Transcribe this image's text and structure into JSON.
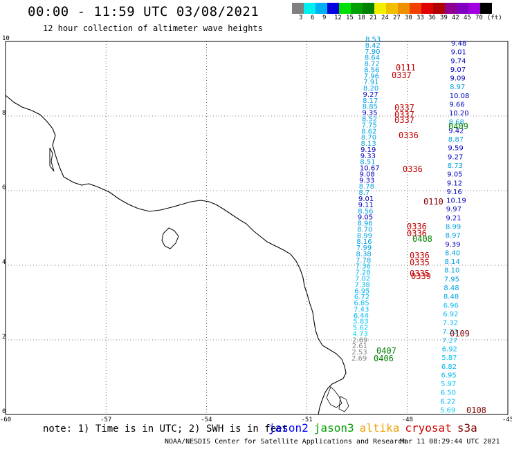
{
  "header": {
    "title": "00:00 - 11:59 UTC 03/08/2021",
    "subtitle": "12 hour collection of altimeter wave heights"
  },
  "colorbar": {
    "colors": [
      "#808080",
      "#00f0f0",
      "#00b0f0",
      "#0000e0",
      "#00e000",
      "#00a000",
      "#008000",
      "#f0f000",
      "#f0c000",
      "#f09000",
      "#f04000",
      "#e00000",
      "#b00000",
      "#900090",
      "#8000c0",
      "#a000e0",
      "#000000"
    ],
    "labels": [
      "3",
      "6",
      "9",
      "12",
      "15",
      "18",
      "21",
      "24",
      "27",
      "30",
      "33",
      "36",
      "39",
      "42",
      "45",
      "70",
      "(ft)"
    ]
  },
  "axes": {
    "x_ticks": [
      "-60",
      "-57",
      "-54",
      "-51",
      "-48",
      "-45"
    ],
    "y_ticks": [
      "0",
      "2",
      "4",
      "6",
      "8",
      "10"
    ]
  },
  "passes": [
    {
      "label": "0111",
      "color": "#c00000"
    },
    {
      "label": "0337",
      "color": "#c00000"
    },
    {
      "label": "0337",
      "color": "#c00000"
    },
    {
      "label": "0337",
      "color": "#c00000"
    },
    {
      "label": "0337",
      "color": "#c00000"
    },
    {
      "label": "0409",
      "color": "#008000"
    },
    {
      "label": "0336",
      "color": "#c00000"
    },
    {
      "label": "0336",
      "color": "#c00000"
    },
    {
      "label": "0110",
      "color": "#800000"
    },
    {
      "label": "0336",
      "color": "#c00000"
    },
    {
      "label": "0336",
      "color": "#c00000"
    },
    {
      "label": "0408",
      "color": "#008000"
    },
    {
      "label": "0336",
      "color": "#c00000"
    },
    {
      "label": "0335",
      "color": "#c00000"
    },
    {
      "label": "0339",
      "color": "#c00000"
    },
    {
      "label": "0335",
      "color": "#c00000"
    },
    {
      "label": "0109",
      "color": "#800000"
    },
    {
      "label": "0407",
      "color": "#008000"
    },
    {
      "label": "0406",
      "color": "#008000"
    },
    {
      "label": "0108",
      "color": "#800000"
    }
  ],
  "track_right": [
    {
      "v": "9.48",
      "c": "#0000c0"
    },
    {
      "v": "9.01",
      "c": "#0000c0"
    },
    {
      "v": "9.74",
      "c": "#0000c0"
    },
    {
      "v": "9.07",
      "c": "#0000c0"
    },
    {
      "v": "9.09",
      "c": "#0000c0"
    },
    {
      "v": "8.97",
      "c": "#00a0e0"
    },
    {
      "v": "10.08",
      "c": "#0000c0"
    },
    {
      "v": "9.66",
      "c": "#0000c0"
    },
    {
      "v": "10.20",
      "c": "#0000c0"
    },
    {
      "v": "8.68",
      "c": "#00a0e0"
    },
    {
      "v": "9.42",
      "c": "#0000c0"
    },
    {
      "v": "8.87",
      "c": "#00a0e0"
    },
    {
      "v": "9.59",
      "c": "#0000c0"
    },
    {
      "v": "9.27",
      "c": "#0000c0"
    },
    {
      "v": "8.73",
      "c": "#00a0e0"
    },
    {
      "v": "9.05",
      "c": "#0000c0"
    },
    {
      "v": "9.12",
      "c": "#0000c0"
    },
    {
      "v": "9.16",
      "c": "#0000c0"
    },
    {
      "v": "10.19",
      "c": "#0000c0"
    },
    {
      "v": "9.97",
      "c": "#0000c0"
    },
    {
      "v": "9.21",
      "c": "#0000c0"
    },
    {
      "v": "8.99",
      "c": "#00a0e0"
    },
    {
      "v": "8.97",
      "c": "#00a0e0"
    },
    {
      "v": "9.39",
      "c": "#0000c0"
    },
    {
      "v": "8.40",
      "c": "#00a0e0"
    },
    {
      "v": "8.14",
      "c": "#00a0e0"
    },
    {
      "v": "8.10",
      "c": "#00a0e0"
    },
    {
      "v": "7.95",
      "c": "#00a0e0"
    },
    {
      "v": "8.48",
      "c": "#00a0e0"
    },
    {
      "v": "8.48",
      "c": "#00a0e0"
    },
    {
      "v": "6.96",
      "c": "#00b8f0"
    },
    {
      "v": "6.92",
      "c": "#00b8f0"
    },
    {
      "v": "7.32",
      "c": "#00b8f0"
    },
    {
      "v": "7.23",
      "c": "#00b8f0"
    },
    {
      "v": "7.27",
      "c": "#00b8f0"
    },
    {
      "v": "6.92",
      "c": "#00b8f0"
    },
    {
      "v": "5.87",
      "c": "#00c8f0"
    },
    {
      "v": "6.82",
      "c": "#00b8f0"
    },
    {
      "v": "6.95",
      "c": "#00b8f0"
    },
    {
      "v": "5.97",
      "c": "#00c8f0"
    },
    {
      "v": "6.50",
      "c": "#00b8f0"
    },
    {
      "v": "6.22",
      "c": "#00b8f0"
    },
    {
      "v": "5.69",
      "c": "#00c8f0"
    }
  ],
  "track_left": [
    {
      "v": "8.53",
      "c": "#00a0e0"
    },
    {
      "v": "8.42",
      "c": "#00a0e0"
    },
    {
      "v": "7.90",
      "c": "#00a0e0"
    },
    {
      "v": "8.64",
      "c": "#00a0e0"
    },
    {
      "v": "8.72",
      "c": "#00a0e0"
    },
    {
      "v": "8.56",
      "c": "#00a0e0"
    },
    {
      "v": "7.96",
      "c": "#00a0e0"
    },
    {
      "v": "7.91",
      "c": "#00a0e0"
    },
    {
      "v": "8.20",
      "c": "#00a0e0"
    },
    {
      "v": "9.27",
      "c": "#0000c0"
    },
    {
      "v": "8.17",
      "c": "#00a0e0"
    },
    {
      "v": "8.85",
      "c": "#00a0e0"
    },
    {
      "v": "9.35",
      "c": "#0000c0"
    },
    {
      "v": "8.52",
      "c": "#00a0e0"
    },
    {
      "v": "7.75",
      "c": "#00a0e0"
    },
    {
      "v": "8.62",
      "c": "#00a0e0"
    },
    {
      "v": "8.70",
      "c": "#00a0e0"
    },
    {
      "v": "8.13",
      "c": "#00a0e0"
    },
    {
      "v": "9.19",
      "c": "#0000c0"
    },
    {
      "v": "9.33",
      "c": "#0000c0"
    },
    {
      "v": "8.51",
      "c": "#00a0e0"
    },
    {
      "v": "10.67",
      "c": "#0000c0"
    },
    {
      "v": "9.08",
      "c": "#0000c0"
    },
    {
      "v": "9.33",
      "c": "#0000c0"
    },
    {
      "v": "8.78",
      "c": "#00a0e0"
    },
    {
      "v": "8.7",
      "c": "#00a0e0"
    },
    {
      "v": "9.01",
      "c": "#0000c0"
    },
    {
      "v": "9.11",
      "c": "#0000c0"
    },
    {
      "v": "8.56",
      "c": "#00a0e0"
    },
    {
      "v": "9.05",
      "c": "#0000c0"
    },
    {
      "v": "8.96",
      "c": "#00a0e0"
    },
    {
      "v": "8.70",
      "c": "#00a0e0"
    },
    {
      "v": "8.99",
      "c": "#00a0e0"
    },
    {
      "v": "8.16",
      "c": "#00a0e0"
    },
    {
      "v": "7.99",
      "c": "#00a0e0"
    },
    {
      "v": "8.38",
      "c": "#00a0e0"
    },
    {
      "v": "7.78",
      "c": "#00a0e0"
    },
    {
      "v": "7.36",
      "c": "#00b8f0"
    },
    {
      "v": "7.28",
      "c": "#00b8f0"
    },
    {
      "v": "7.02",
      "c": "#00b8f0"
    },
    {
      "v": "7.38",
      "c": "#00b8f0"
    },
    {
      "v": "6.95",
      "c": "#00b8f0"
    },
    {
      "v": "6.72",
      "c": "#00b8f0"
    },
    {
      "v": "6.85",
      "c": "#00b8f0"
    },
    {
      "v": "7.43",
      "c": "#00b8f0"
    },
    {
      "v": "6.44",
      "c": "#00b8f0"
    },
    {
      "v": "5.83",
      "c": "#00c8f0"
    },
    {
      "v": "5.62",
      "c": "#00c8f0"
    },
    {
      "v": "4.73",
      "c": "#00d8f0"
    },
    {
      "v": "2.69",
      "c": "#808080"
    },
    {
      "v": "2.61",
      "c": "#808080"
    },
    {
      "v": "2.53",
      "c": "#808080"
    },
    {
      "v": "2.69",
      "c": "#808080"
    }
  ],
  "footer": {
    "note": "note: 1) Time is in UTC; 2) SWH is in feet",
    "satellites": [
      {
        "name": "jason2",
        "color": "#0000ff"
      },
      {
        "name": "jason3",
        "color": "#00a000"
      },
      {
        "name": "altika",
        "color": "#f0a000"
      },
      {
        "name": "cryosat",
        "color": "#d00000"
      },
      {
        "name": "s3a",
        "color": "#800000"
      }
    ],
    "credit": "NOAA/NESDIS Center for Satellite Applications and Research",
    "timestamp": "Mar 11 08:29:44 UTC 2021"
  }
}
